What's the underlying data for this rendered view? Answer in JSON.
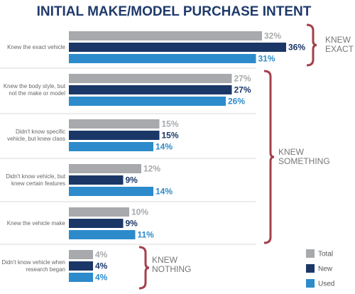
{
  "chart_data": {
    "type": "bar",
    "orientation": "horizontal",
    "title": "INITIAL MAKE/MODEL PURCHASE INTENT",
    "categories": [
      "Knew the exact vehicle",
      "Knew the body style, but not the make or model",
      "Didn't know specific vehicle, but knew class",
      "Didn't know vehicle, but knew certain features",
      "Knew the vehicle make",
      "Didn't know vehicle when research began"
    ],
    "series": [
      {
        "name": "Total",
        "color": "#a7a9ac",
        "values": [
          32,
          27,
          15,
          12,
          10,
          4
        ],
        "value_labels": [
          "32%",
          "27%",
          "15%",
          "12%",
          "10%",
          "4%"
        ]
      },
      {
        "name": "New",
        "color": "#1b3767",
        "values": [
          36,
          27,
          15,
          9,
          9,
          4
        ],
        "value_labels": [
          "36%",
          "27%",
          "15%",
          "9%",
          "9%",
          "4%"
        ]
      },
      {
        "name": "Used",
        "color": "#2d8bcb",
        "values": [
          31,
          26,
          14,
          14,
          11,
          4
        ],
        "value_labels": [
          "31%",
          "26%",
          "14%",
          "14%",
          "11%",
          "4%"
        ]
      }
    ],
    "annotations": [
      {
        "lines": [
          "KNEW",
          "EXACT"
        ]
      },
      {
        "lines": [
          "KNEW",
          "SOMETHING"
        ]
      },
      {
        "lines": [
          "KNEW",
          "NOTHING"
        ]
      }
    ],
    "legend": "bottom-right"
  }
}
